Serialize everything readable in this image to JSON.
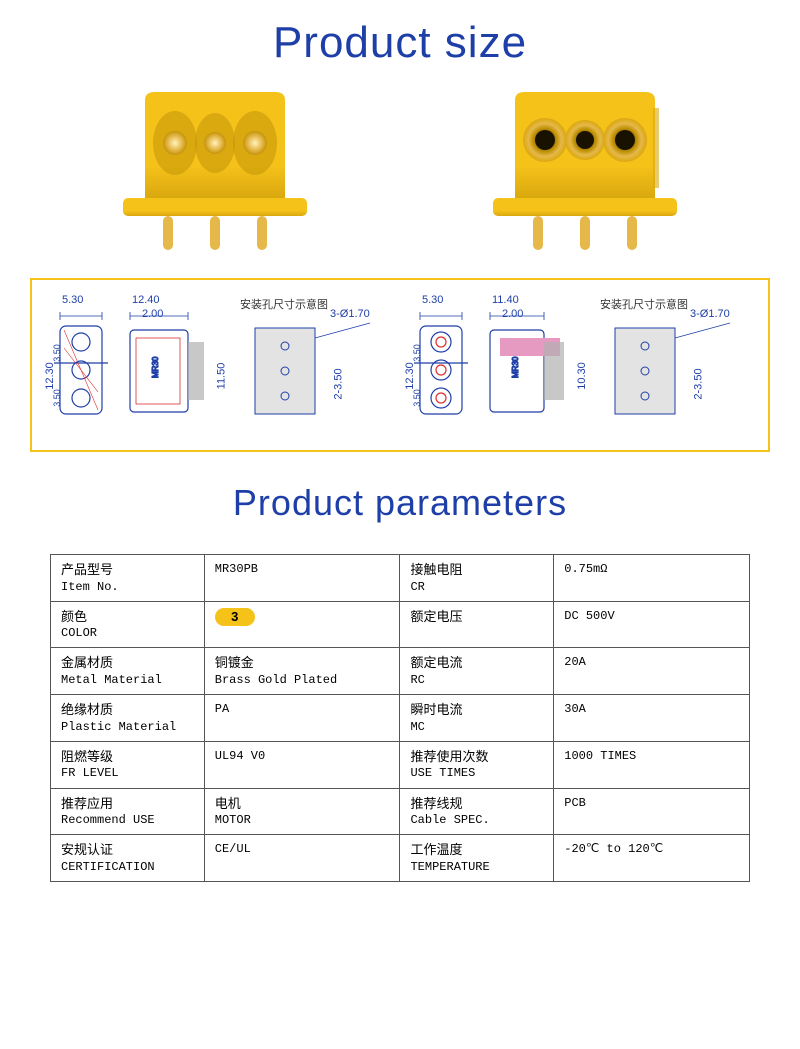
{
  "colors": {
    "heading": "#1e3fa8",
    "underline_short": "#f4b400",
    "underline_long": "#dcdcdc",
    "connector_body": "#f5c21a",
    "connector_shadow": "#d9a80e",
    "connector_dark": "#c29408",
    "pin_gold": "#e6b84a",
    "pin_highlight": "#fff2c0",
    "diagram_border": "#f5c21a",
    "diagram_line": "#1e3fa8",
    "diagram_gray": "#b0b0b0",
    "diagram_red": "#d93030",
    "diagram_pink": "#e69ac2",
    "table_border": "#555555",
    "text_black": "#000000"
  },
  "headings": {
    "size_title": "Product size",
    "size_fontsize": 44,
    "params_title": "Product parameters",
    "params_fontsize": 36,
    "underline_short_w": 50,
    "underline_long_w": 210
  },
  "diagram": {
    "title_left": "安装孔尺寸示意图",
    "title_right": "安装孔尺寸示意图",
    "left": {
      "d_5_30": "5.30",
      "d_12_40": "12.40",
      "d_2_00": "2.00",
      "d_12_30": "12.30",
      "d_3_50_l": "3.50",
      "d_3_50_r": "3.50",
      "d_11_50": "11.50",
      "d_3_o170": "3-Ø1.70",
      "d_2_350": "2-3.50",
      "part": "MR30"
    },
    "right": {
      "d_5_30": "5.30",
      "d_11_40": "11.40",
      "d_2_00": "2.00",
      "d_12_30": "12.30",
      "d_3_50_l": "3.50",
      "d_3_50_r": "3.50",
      "d_10_30": "10.30",
      "d_3_o170": "3-Ø1.70",
      "d_2_350": "2-3.50",
      "part": "MR30"
    }
  },
  "table": {
    "rows": [
      {
        "l_cn": "产品型号",
        "l_en": "Item No.",
        "l_val": "MR30PB",
        "r_cn": "接触电阻",
        "r_en": "CR",
        "r_val": "0.75mΩ"
      },
      {
        "l_cn": "颜色",
        "l_en": "COLOR",
        "l_val": "__COLOR_BADGE__",
        "r_cn": "额定电压",
        "r_en": "",
        "r_val": "DC 500V"
      },
      {
        "l_cn": "金属材质",
        "l_en": "Metal Material",
        "l_val_cn": "铜镀金",
        "l_val_en": "Brass Gold Plated",
        "r_cn": "额定电流",
        "r_en": "RC",
        "r_val": "20A"
      },
      {
        "l_cn": "绝缘材质",
        "l_en": "Plastic Material",
        "l_val": "PA",
        "r_cn": "瞬时电流",
        "r_en": "MC",
        "r_val": "30A"
      },
      {
        "l_cn": "阻燃等级",
        "l_en": "FR LEVEL",
        "l_val": "UL94 V0",
        "r_cn": "推荐使用次数",
        "r_en": "USE TIMES",
        "r_val": "1000 TIMES"
      },
      {
        "l_cn": "推荐应用",
        "l_en": "Recommend USE",
        "l_val_cn": "电机",
        "l_val_en": "MOTOR",
        "r_cn": "推荐线规",
        "r_en": "Cable SPEC.",
        "r_val": "PCB"
      },
      {
        "l_cn": "安规认证",
        "l_en": "CERTIFICATION",
        "l_val": "CE/UL",
        "r_cn": "工作温度",
        "r_en": "TEMPERATURE",
        "r_val": "-20℃ to 120℃"
      }
    ],
    "color_badge_value": "3"
  }
}
